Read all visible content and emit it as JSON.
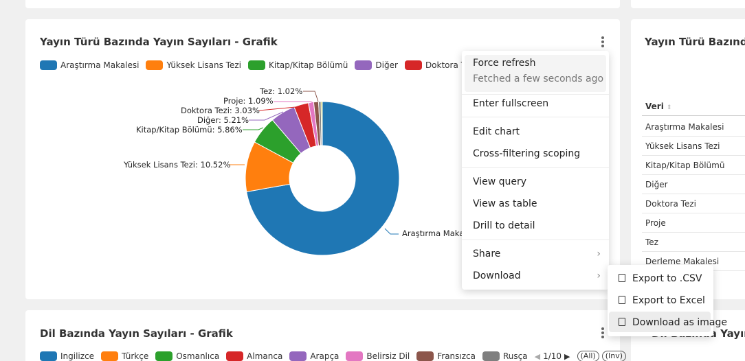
{
  "chart_card": {
    "title": "Yayın Türü Bazında Yayın Sayıları - Grafik",
    "legend": [
      {
        "label": "Araştırma Makalesi",
        "color": "#1f77b4"
      },
      {
        "label": "Yüksek Lisans Tezi",
        "color": "#ff7f0e"
      },
      {
        "label": "Kitap/Kitap Bölümü",
        "color": "#2ca02c"
      },
      {
        "label": "Diğer",
        "color": "#9467bd"
      },
      {
        "label": "Doktora Tezi",
        "color": "#d62728"
      }
    ],
    "slice_labels": {
      "tez": "Tez: 1.02%",
      "proje": "Proje: 1.09%",
      "doktora": "Doktora Tezi: 3.03%",
      "diger": "Diğer: 5.21%",
      "kitap": "Kitap/Kitap Bölümü: 5.86%",
      "yuksek": "Yüksek Lisans Tezi: 10.52%",
      "arastirma": "Araştırma Maka"
    }
  },
  "chart_data": {
    "type": "pie",
    "title": "Yayın Türü Bazında Yayın Sayıları - Grafik",
    "slices": [
      {
        "name": "Araştırma Makalesi",
        "value": 71.5,
        "color": "#1f77b4"
      },
      {
        "name": "Yüksek Lisans Tezi",
        "value": 10.52,
        "color": "#ff7f0e"
      },
      {
        "name": "Kitap/Kitap Bölümü",
        "value": 5.86,
        "color": "#2ca02c"
      },
      {
        "name": "Diğer",
        "value": 5.21,
        "color": "#9467bd"
      },
      {
        "name": "Doktora Tezi",
        "value": 3.03,
        "color": "#d62728"
      },
      {
        "name": "Proje",
        "value": 1.09,
        "color": "#e377c2"
      },
      {
        "name": "Tez",
        "value": 1.02,
        "color": "#8c564b"
      },
      {
        "name": "",
        "value": 0.5,
        "color": "#7f7f7f"
      },
      {
        "name": "",
        "value": 0.27,
        "color": "#bcbd22"
      }
    ],
    "donut": true,
    "legend_position": "top"
  },
  "table_card": {
    "title": "Yayın Türü Bazında",
    "column": "Veri",
    "rows": [
      "Araştırma Makalesi",
      "Yüksek Lisans Tezi",
      "Kitap/Kitap Bölümü",
      "Diğer",
      "Doktora Tezi",
      "Proje",
      "Tez",
      "Derleme Makalesi"
    ]
  },
  "bottom_card": {
    "title": "Dil Bazında Yayın Sayıları - Grafik",
    "legend": [
      {
        "label": "Ingilizce",
        "color": "#1f77b4"
      },
      {
        "label": "Türkçe",
        "color": "#ff7f0e"
      },
      {
        "label": "Osmanlıca",
        "color": "#2ca02c"
      },
      {
        "label": "Almanca",
        "color": "#d62728"
      },
      {
        "label": "Arapça",
        "color": "#9467bd"
      },
      {
        "label": "Belirsiz Dil",
        "color": "#e377c2"
      },
      {
        "label": "Fransızca",
        "color": "#8c564b"
      },
      {
        "label": "Rusça",
        "color": "#7f7f7f"
      }
    ],
    "pager": "1/10",
    "all_label": "(All)",
    "inv_label": "(Inv)"
  },
  "bottom_right_title": "Dil Bazında Yayın S",
  "menu": {
    "force_refresh": "Force refresh",
    "fetched": "Fetched a few seconds ago",
    "fullscreen": "Enter fullscreen",
    "edit_chart": "Edit chart",
    "cross_filter": "Cross-filtering scoping",
    "view_query": "View query",
    "view_table": "View as table",
    "drill": "Drill to detail",
    "share": "Share",
    "download": "Download"
  },
  "submenu": {
    "csv": "Export to .CSV",
    "excel": "Export to Excel",
    "image": "Download as image"
  }
}
